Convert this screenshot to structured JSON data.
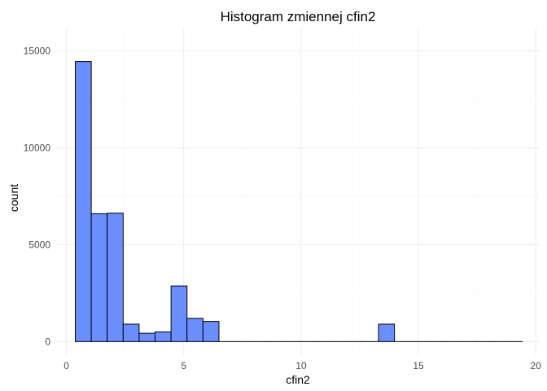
{
  "chart_data": {
    "type": "bar",
    "title": "Histogram zmiennej  cfin2",
    "xlabel": "cfin2",
    "ylabel": "count",
    "xlim": [
      -0.4,
      20.2
    ],
    "ylim": [
      -700,
      16200
    ],
    "x_ticks": [
      0,
      5,
      10,
      15,
      20
    ],
    "x_tick_labels": [
      "0",
      "5",
      "10",
      "15",
      "20"
    ],
    "y_ticks": [
      0,
      5000,
      10000,
      15000
    ],
    "y_tick_labels": [
      "0",
      "5000",
      "10000",
      "15000"
    ],
    "x_minor_ticks": [
      2.5,
      7.5,
      12.5,
      17.5
    ],
    "y_minor_ticks": [
      2500,
      7500,
      12500
    ],
    "grid": true,
    "bar_color": "#6b8eff",
    "bar_outline": "#000000",
    "bins": [
      {
        "x0": 0.38,
        "x1": 1.06,
        "count": 14450
      },
      {
        "x0": 1.06,
        "x1": 1.74,
        "count": 6600
      },
      {
        "x0": 1.74,
        "x1": 2.42,
        "count": 6630
      },
      {
        "x0": 2.42,
        "x1": 3.1,
        "count": 900
      },
      {
        "x0": 3.1,
        "x1": 3.78,
        "count": 430
      },
      {
        "x0": 3.78,
        "x1": 4.46,
        "count": 500
      },
      {
        "x0": 4.46,
        "x1": 5.14,
        "count": 2870
      },
      {
        "x0": 5.14,
        "x1": 5.82,
        "count": 1200
      },
      {
        "x0": 5.82,
        "x1": 6.5,
        "count": 1040
      },
      {
        "x0": 6.5,
        "x1": 7.18,
        "count": 0
      },
      {
        "x0": 7.18,
        "x1": 7.86,
        "count": 0
      },
      {
        "x0": 7.86,
        "x1": 8.54,
        "count": 0
      },
      {
        "x0": 8.54,
        "x1": 9.22,
        "count": 0
      },
      {
        "x0": 9.22,
        "x1": 9.9,
        "count": 0
      },
      {
        "x0": 9.9,
        "x1": 10.58,
        "count": 0
      },
      {
        "x0": 10.58,
        "x1": 11.26,
        "count": 0
      },
      {
        "x0": 11.26,
        "x1": 11.94,
        "count": 0
      },
      {
        "x0": 11.94,
        "x1": 12.62,
        "count": 0
      },
      {
        "x0": 12.62,
        "x1": 13.3,
        "count": 0
      },
      {
        "x0": 13.3,
        "x1": 13.98,
        "count": 900
      },
      {
        "x0": 13.98,
        "x1": 14.66,
        "count": 0
      },
      {
        "x0": 14.66,
        "x1": 15.34,
        "count": 0
      },
      {
        "x0": 15.34,
        "x1": 16.02,
        "count": 0
      },
      {
        "x0": 16.02,
        "x1": 16.7,
        "count": 0
      },
      {
        "x0": 16.7,
        "x1": 17.38,
        "count": 0
      },
      {
        "x0": 17.38,
        "x1": 18.06,
        "count": 0
      },
      {
        "x0": 18.06,
        "x1": 18.74,
        "count": 0
      },
      {
        "x0": 18.74,
        "x1": 19.42,
        "count": 0
      }
    ]
  }
}
